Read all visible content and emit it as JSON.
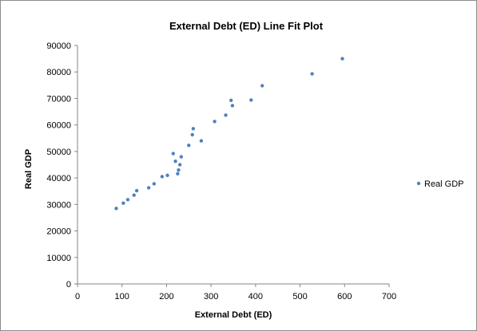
{
  "chart_data": {
    "type": "scatter",
    "title": "External Debt (ED) Line Fit  Plot",
    "xlabel": "External Debt (ED)",
    "ylabel": "Real GDP",
    "xlim": [
      0,
      700
    ],
    "ylim": [
      0,
      90000
    ],
    "x_ticks": [
      "0",
      "100",
      "200",
      "300",
      "400",
      "500",
      "600",
      "700"
    ],
    "y_ticks": [
      "0",
      "10000",
      "20000",
      "30000",
      "40000",
      "50000",
      "60000",
      "70000",
      "80000",
      "90000"
    ],
    "grid": false,
    "legend_position": "right",
    "series": [
      {
        "name": "Real GDP",
        "color": "#4f81bd",
        "points": [
          {
            "x": 87,
            "y": 28500
          },
          {
            "x": 103,
            "y": 30500
          },
          {
            "x": 113,
            "y": 31800
          },
          {
            "x": 127,
            "y": 33500
          },
          {
            "x": 133,
            "y": 35200
          },
          {
            "x": 160,
            "y": 36300
          },
          {
            "x": 172,
            "y": 37800
          },
          {
            "x": 190,
            "y": 40500
          },
          {
            "x": 202,
            "y": 41000
          },
          {
            "x": 215,
            "y": 49200
          },
          {
            "x": 220,
            "y": 46300
          },
          {
            "x": 225,
            "y": 41600
          },
          {
            "x": 227,
            "y": 43000
          },
          {
            "x": 230,
            "y": 45000
          },
          {
            "x": 233,
            "y": 48000
          },
          {
            "x": 250,
            "y": 52300
          },
          {
            "x": 258,
            "y": 56300
          },
          {
            "x": 260,
            "y": 58600
          },
          {
            "x": 278,
            "y": 54000
          },
          {
            "x": 308,
            "y": 61300
          },
          {
            "x": 333,
            "y": 63700
          },
          {
            "x": 345,
            "y": 69300
          },
          {
            "x": 348,
            "y": 67300
          },
          {
            "x": 390,
            "y": 69400
          },
          {
            "x": 415,
            "y": 74800
          },
          {
            "x": 527,
            "y": 79300
          },
          {
            "x": 595,
            "y": 85000
          }
        ]
      }
    ]
  }
}
